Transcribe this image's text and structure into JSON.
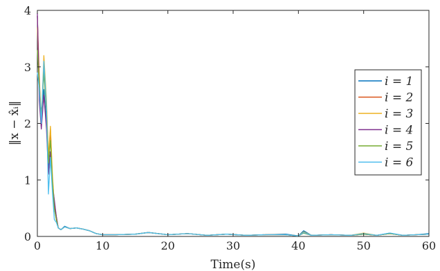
{
  "chart_data": {
    "type": "line",
    "title": "",
    "xlabel": "Time(s)",
    "ylabel": "‖x − x̂ᵢ‖",
    "xlim": [
      0,
      60
    ],
    "ylim": [
      0,
      4
    ],
    "xticks": [
      0,
      10,
      20,
      30,
      40,
      50,
      60
    ],
    "yticks": [
      0,
      1,
      2,
      3,
      4
    ],
    "grid": false,
    "legend_position": "right",
    "series": [
      {
        "name": "i = 1",
        "color": "#0072BD",
        "x": [
          0,
          0.3,
          0.6,
          1.0,
          1.4,
          1.7,
          2.0,
          2.3,
          2.6,
          2.9,
          3.2,
          3.6,
          4.2,
          5.0,
          6.0,
          7.0,
          8.0,
          9.0,
          10.0,
          12,
          15,
          17,
          20,
          23,
          26,
          29,
          32,
          35,
          38,
          40,
          40.8,
          42,
          45,
          48,
          50,
          52,
          54,
          56,
          58,
          60
        ],
        "y": [
          3.9,
          2.5,
          2.2,
          2.6,
          2.0,
          1.2,
          1.5,
          0.9,
          0.5,
          0.3,
          0.15,
          0.12,
          0.18,
          0.14,
          0.15,
          0.13,
          0.1,
          0.05,
          0.03,
          0.03,
          0.04,
          0.07,
          0.03,
          0.05,
          0.02,
          0.04,
          0.02,
          0.03,
          0.04,
          0.01,
          0.1,
          0.02,
          0.03,
          0.02,
          0.05,
          0.02,
          0.06,
          0.02,
          0.03,
          0.05
        ]
      },
      {
        "name": "i = 2",
        "color": "#D95319",
        "x": [
          0,
          0.3,
          0.6,
          1.0,
          1.4,
          1.7,
          2.0,
          2.3,
          2.6,
          2.9,
          3.2,
          3.6,
          4.2,
          5.0,
          6.0,
          7.0,
          8.0,
          9.0,
          10.0,
          12,
          15,
          17,
          20,
          23,
          26,
          29,
          32,
          35,
          38,
          40,
          40.8,
          42,
          45,
          48,
          50,
          52,
          54,
          56,
          58,
          60
        ],
        "y": [
          3.9,
          2.8,
          2.0,
          3.0,
          2.3,
          1.3,
          1.9,
          1.0,
          0.6,
          0.35,
          0.15,
          0.12,
          0.17,
          0.14,
          0.15,
          0.13,
          0.1,
          0.05,
          0.03,
          0.03,
          0.04,
          0.07,
          0.03,
          0.05,
          0.02,
          0.04,
          0.02,
          0.03,
          0.03,
          0.01,
          0.07,
          0.02,
          0.03,
          0.02,
          0.04,
          0.02,
          0.05,
          0.02,
          0.03,
          0.04
        ]
      },
      {
        "name": "i = 3",
        "color": "#EDB120",
        "x": [
          0,
          0.3,
          0.6,
          1.0,
          1.4,
          1.7,
          2.0,
          2.3,
          2.6,
          2.9,
          3.2,
          3.6,
          4.2,
          5.0,
          6.0,
          7.0,
          8.0,
          9.0,
          10.0,
          12,
          15,
          17,
          20,
          23,
          26,
          29,
          32,
          35,
          38,
          40,
          40.8,
          42,
          45,
          48,
          50,
          52,
          54,
          56,
          58,
          60
        ],
        "y": [
          3.7,
          2.6,
          2.0,
          3.2,
          2.4,
          1.4,
          1.95,
          1.1,
          0.55,
          0.3,
          0.15,
          0.12,
          0.17,
          0.14,
          0.15,
          0.13,
          0.1,
          0.05,
          0.03,
          0.03,
          0.04,
          0.07,
          0.03,
          0.05,
          0.02,
          0.04,
          0.02,
          0.03,
          0.03,
          0.01,
          0.08,
          0.02,
          0.03,
          0.02,
          0.06,
          0.02,
          0.05,
          0.02,
          0.03,
          0.04
        ]
      },
      {
        "name": "i = 4",
        "color": "#7E2F8E",
        "x": [
          0,
          0.3,
          0.6,
          1.0,
          1.4,
          1.7,
          2.0,
          2.3,
          2.6,
          2.9,
          3.2,
          3.6,
          4.2,
          5.0,
          6.0,
          7.0,
          8.0,
          9.0,
          10.0,
          12,
          15,
          17,
          20,
          23,
          26,
          29,
          32,
          35,
          38,
          40,
          40.8,
          42,
          45,
          48,
          50,
          52,
          54,
          56,
          58,
          60
        ],
        "y": [
          3.95,
          2.4,
          1.9,
          2.5,
          1.9,
          1.1,
          1.5,
          0.9,
          0.65,
          0.35,
          0.15,
          0.12,
          0.17,
          0.14,
          0.15,
          0.13,
          0.1,
          0.05,
          0.03,
          0.03,
          0.04,
          0.07,
          0.03,
          0.05,
          0.02,
          0.04,
          0.02,
          0.03,
          0.03,
          0.01,
          0.06,
          0.02,
          0.03,
          0.02,
          0.04,
          0.02,
          0.05,
          0.02,
          0.03,
          0.04
        ]
      },
      {
        "name": "i = 5",
        "color": "#77AC30",
        "x": [
          0,
          0.3,
          0.6,
          1.0,
          1.4,
          1.7,
          2.0,
          2.3,
          2.6,
          2.9,
          3.2,
          3.6,
          4.2,
          5.0,
          6.0,
          7.0,
          8.0,
          9.0,
          10.0,
          12,
          15,
          17,
          20,
          23,
          26,
          29,
          32,
          35,
          38,
          40,
          40.8,
          42,
          45,
          48,
          50,
          52,
          54,
          56,
          58,
          60
        ],
        "y": [
          3.3,
          2.7,
          2.1,
          2.9,
          2.2,
          1.3,
          1.7,
          1.0,
          0.5,
          0.3,
          0.15,
          0.12,
          0.17,
          0.14,
          0.15,
          0.13,
          0.1,
          0.05,
          0.03,
          0.03,
          0.04,
          0.07,
          0.03,
          0.05,
          0.02,
          0.04,
          0.02,
          0.03,
          0.03,
          0.01,
          0.06,
          0.02,
          0.03,
          0.02,
          0.04,
          0.02,
          0.05,
          0.02,
          0.03,
          0.04
        ]
      },
      {
        "name": "i = 6",
        "color": "#4DBEEE",
        "x": [
          0,
          0.3,
          0.6,
          1.0,
          1.4,
          1.7,
          2.0,
          2.3,
          2.6,
          2.9,
          3.2,
          3.6,
          4.2,
          5.0,
          6.0,
          7.0,
          8.0,
          9.0,
          10.0,
          12,
          15,
          17,
          20,
          23,
          26,
          29,
          32,
          35,
          38,
          40,
          40.8,
          42,
          45,
          48,
          50,
          52,
          54,
          56,
          58,
          60
        ],
        "y": [
          2.9,
          2.6,
          2.0,
          3.1,
          2.3,
          0.75,
          1.4,
          0.8,
          0.3,
          0.25,
          0.15,
          0.12,
          0.17,
          0.14,
          0.15,
          0.13,
          0.1,
          0.05,
          0.03,
          0.03,
          0.04,
          0.07,
          0.03,
          0.05,
          0.02,
          0.04,
          0.02,
          0.03,
          0.03,
          0.01,
          0.07,
          0.02,
          0.03,
          0.02,
          0.05,
          0.02,
          0.06,
          0.02,
          0.03,
          0.04
        ]
      }
    ]
  }
}
